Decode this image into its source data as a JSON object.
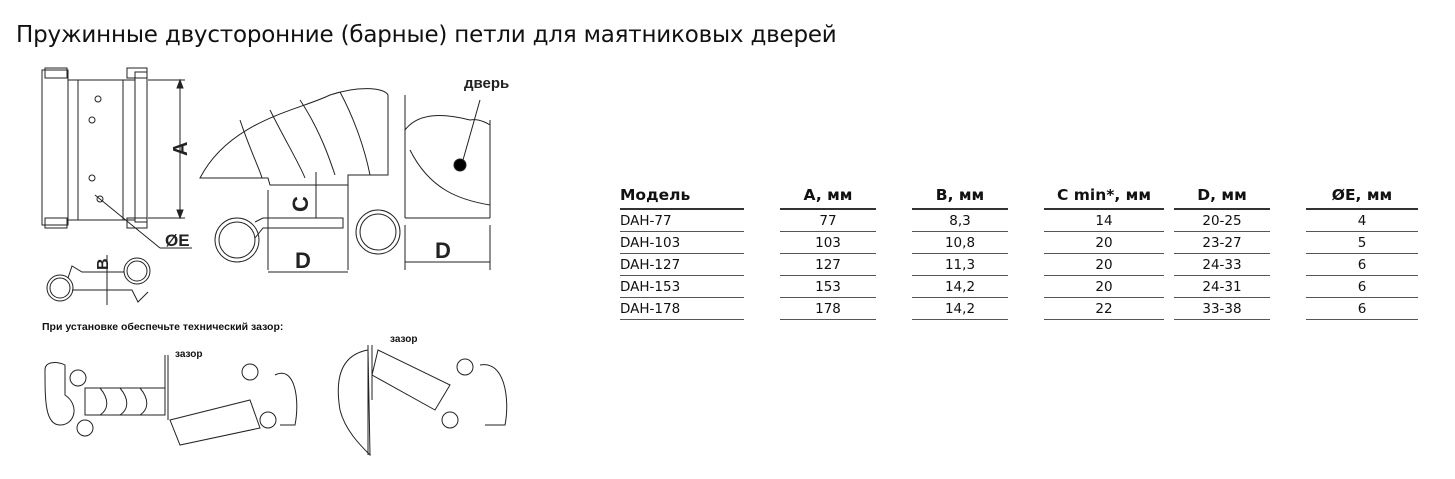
{
  "title": "Пружинные двусторонние (барные) петли для маятниковых дверей",
  "drawing": {
    "labels": {
      "a": "A",
      "b": "B",
      "c": "C",
      "d": "D",
      "e": "ØE",
      "door": "дверь",
      "gap": "зазор"
    },
    "note": "При установке обеспечьте технический зазор:"
  },
  "table": {
    "headers": [
      "Модель",
      "A, мм",
      "B, мм",
      "C min*, мм",
      "D, мм",
      "ØE, мм"
    ],
    "rows": [
      [
        "DAH-77",
        "77",
        "8,3",
        "14",
        "20-25",
        "4"
      ],
      [
        "DAH-103",
        "103",
        "10,8",
        "20",
        "23-27",
        "5"
      ],
      [
        "DAH-127",
        "127",
        "11,3",
        "20",
        "24-33",
        "6"
      ],
      [
        "DAH-153",
        "153",
        "14,2",
        "20",
        "24-31",
        "6"
      ],
      [
        "DAH-178",
        "178",
        "14,2",
        "22",
        "33-38",
        "6"
      ]
    ]
  }
}
